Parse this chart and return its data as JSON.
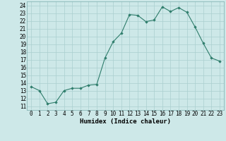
{
  "x": [
    0,
    1,
    2,
    3,
    4,
    5,
    6,
    7,
    8,
    9,
    10,
    11,
    12,
    13,
    14,
    15,
    16,
    17,
    18,
    19,
    20,
    21,
    22,
    23
  ],
  "y": [
    13.5,
    13.0,
    11.3,
    11.5,
    13.0,
    13.3,
    13.3,
    13.7,
    13.8,
    17.2,
    19.3,
    20.4,
    22.8,
    22.7,
    21.9,
    22.1,
    23.8,
    23.2,
    23.7,
    23.1,
    21.2,
    19.1,
    17.2,
    16.8
  ],
  "xlabel": "Humidex (Indice chaleur)",
  "ylim": [
    10.5,
    24.5
  ],
  "xlim": [
    -0.5,
    23.5
  ],
  "yticks": [
    11,
    12,
    13,
    14,
    15,
    16,
    17,
    18,
    19,
    20,
    21,
    22,
    23,
    24
  ],
  "xticks": [
    0,
    1,
    2,
    3,
    4,
    5,
    6,
    7,
    8,
    9,
    10,
    11,
    12,
    13,
    14,
    15,
    16,
    17,
    18,
    19,
    20,
    21,
    22,
    23
  ],
  "line_color": "#2e7d6b",
  "bg_color": "#cde8e8",
  "grid_color": "#aacfcf",
  "xlabel_fontsize": 6.5,
  "tick_fontsize": 5.5
}
